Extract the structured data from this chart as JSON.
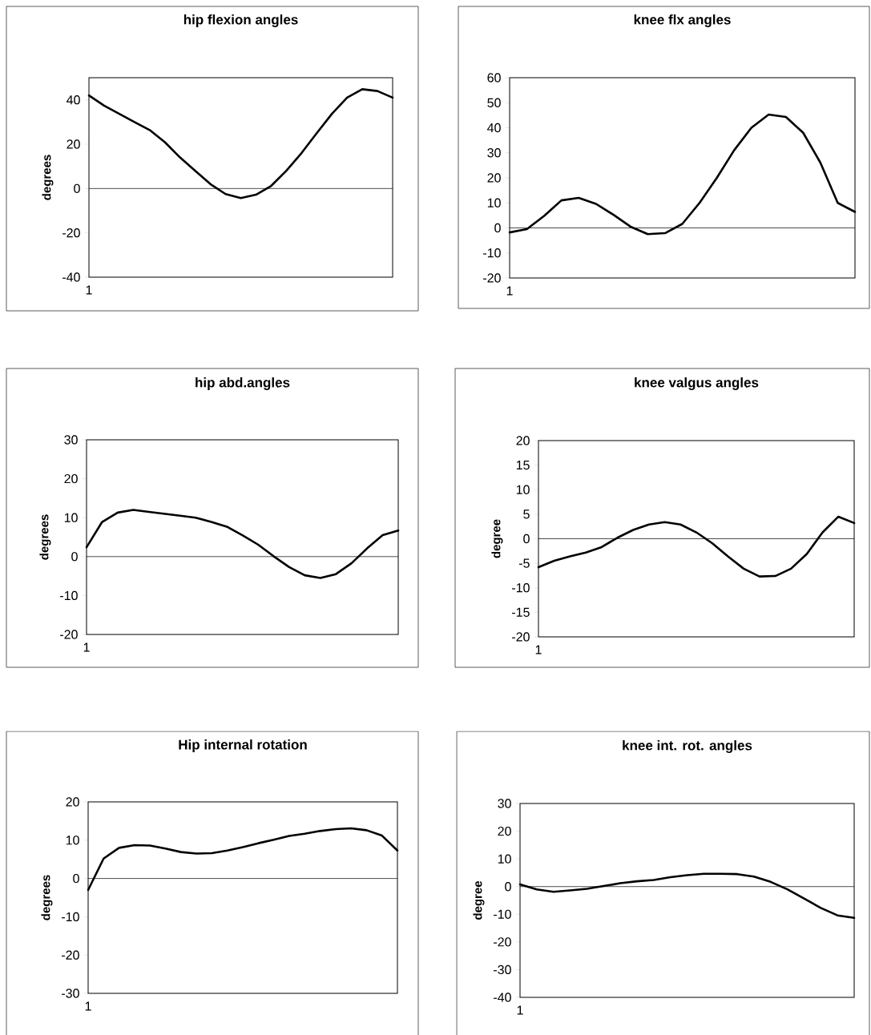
{
  "chart_data": [
    {
      "type": "line",
      "title": "hip flexion angles",
      "ylabel": "degrees",
      "categories": [
        "1",
        null,
        null,
        null,
        null,
        null,
        null,
        null,
        null,
        null,
        null,
        null,
        null,
        null,
        null,
        null,
        null,
        null,
        null,
        null,
        null
      ],
      "color": "#000000",
      "ylim": [
        -40,
        50
      ],
      "yticks": [
        -40,
        -20,
        0,
        20,
        40
      ],
      "ref_lines": [
        {
          "axis": "y",
          "value": 0
        }
      ],
      "values": [
        42,
        37.4,
        33.7,
        30,
        26.4,
        20.9,
        14,
        8,
        2,
        -2.5,
        -4.3,
        -2.8,
        1.2,
        8,
        16,
        25,
        33.7,
        41,
        44.8,
        44,
        41
      ]
    },
    {
      "type": "line",
      "title": "knee flx angles",
      "categories": [
        "1",
        null,
        null,
        null,
        null,
        null,
        null,
        null,
        null,
        null,
        null,
        null,
        null,
        null,
        null,
        null,
        null,
        null,
        null,
        null,
        null
      ],
      "color": "#000000",
      "ylim": [
        -20,
        60
      ],
      "yticks": [
        -20,
        -10,
        0,
        10,
        20,
        30,
        40,
        50,
        60
      ],
      "ref_lines": [
        {
          "axis": "y",
          "value": 0
        }
      ],
      "values": [
        -1.8,
        -0.5,
        4.8,
        11,
        12,
        9.6,
        5.3,
        0.5,
        -2.5,
        -2.1,
        1.6,
        10,
        20,
        31,
        40,
        45.3,
        44.3,
        38,
        26,
        10,
        6.4
      ]
    },
    {
      "type": "line",
      "title": "hip abd.angles",
      "ylabel": "degrees",
      "categories": [
        "1",
        null,
        null,
        null,
        null,
        null,
        null,
        null,
        null,
        null,
        null,
        null,
        null,
        null,
        null,
        null,
        null,
        null,
        null,
        null,
        null
      ],
      "color": "#000000",
      "ylim": [
        -20,
        30
      ],
      "yticks": [
        -20,
        -10,
        0,
        10,
        20,
        30
      ],
      "ref_lines": [
        {
          "axis": "y",
          "value": 0
        }
      ],
      "values": [
        2.4,
        8.9,
        11.3,
        12,
        11.5,
        11,
        10.5,
        10,
        8.9,
        7.7,
        5.5,
        3.1,
        0.1,
        -2.7,
        -4.8,
        -5.5,
        -4.5,
        -1.7,
        2.1,
        5.5,
        6.7
      ]
    },
    {
      "type": "line",
      "title": "knee valgus angles",
      "ylabel": "degree",
      "categories": [
        "1",
        null,
        null,
        null,
        null,
        null,
        null,
        null,
        null,
        null,
        null,
        null,
        null,
        null,
        null,
        null,
        null,
        null,
        null,
        null,
        null
      ],
      "color": "#000000",
      "ylim": [
        -20,
        20
      ],
      "yticks": [
        -20,
        -15,
        -10,
        -5,
        0,
        5,
        10,
        15,
        20
      ],
      "ref_lines": [
        {
          "axis": "y",
          "value": 0
        }
      ],
      "values": [
        -5.8,
        -4.5,
        -3.6,
        -2.8,
        -1.7,
        0.2,
        1.8,
        2.9,
        3.4,
        2.9,
        1.3,
        -0.9,
        -3.6,
        -6.1,
        -7.7,
        -7.6,
        -6.1,
        -3.1,
        1.3,
        4.5,
        3.2
      ]
    },
    {
      "type": "line",
      "title": "Hip internal rotation",
      "ylabel": "degrees",
      "categories": [
        "1",
        null,
        null,
        null,
        null,
        null,
        null,
        null,
        null,
        null,
        null,
        null,
        null,
        null,
        null,
        null,
        null,
        null,
        null,
        null,
        null
      ],
      "color": "#000000",
      "ylim": [
        -30,
        20
      ],
      "yticks": [
        -30,
        -20,
        -10,
        0,
        10,
        20
      ],
      "ref_lines": [
        {
          "axis": "y",
          "value": 0
        }
      ],
      "values": [
        -3,
        5.2,
        8,
        8.7,
        8.6,
        7.8,
        6.9,
        6.5,
        6.6,
        7.3,
        8.2,
        9.2,
        10.1,
        11.1,
        11.7,
        12.4,
        12.9,
        13.1,
        12.6,
        11.2,
        7.3
      ]
    },
    {
      "type": "line",
      "title": "knee int. rot. angles",
      "ylabel": "degree",
      "categories": [
        "1",
        null,
        null,
        null,
        null,
        null,
        null,
        null,
        null,
        null,
        null,
        null,
        null,
        null,
        null,
        null,
        null,
        null,
        null,
        null,
        null
      ],
      "color": "#000000",
      "ylim": [
        -40,
        30
      ],
      "yticks": [
        -40,
        -30,
        -20,
        -10,
        0,
        10,
        20,
        30
      ],
      "ref_lines": [
        {
          "axis": "y",
          "value": 0
        }
      ],
      "values": [
        0.8,
        -1,
        -1.9,
        -1.4,
        -0.8,
        0.2,
        1.2,
        1.9,
        2.4,
        3.4,
        4.1,
        4.6,
        4.6,
        4.5,
        3.6,
        1.7,
        -1,
        -4.3,
        -7.7,
        -10.4,
        -11.3
      ]
    }
  ]
}
